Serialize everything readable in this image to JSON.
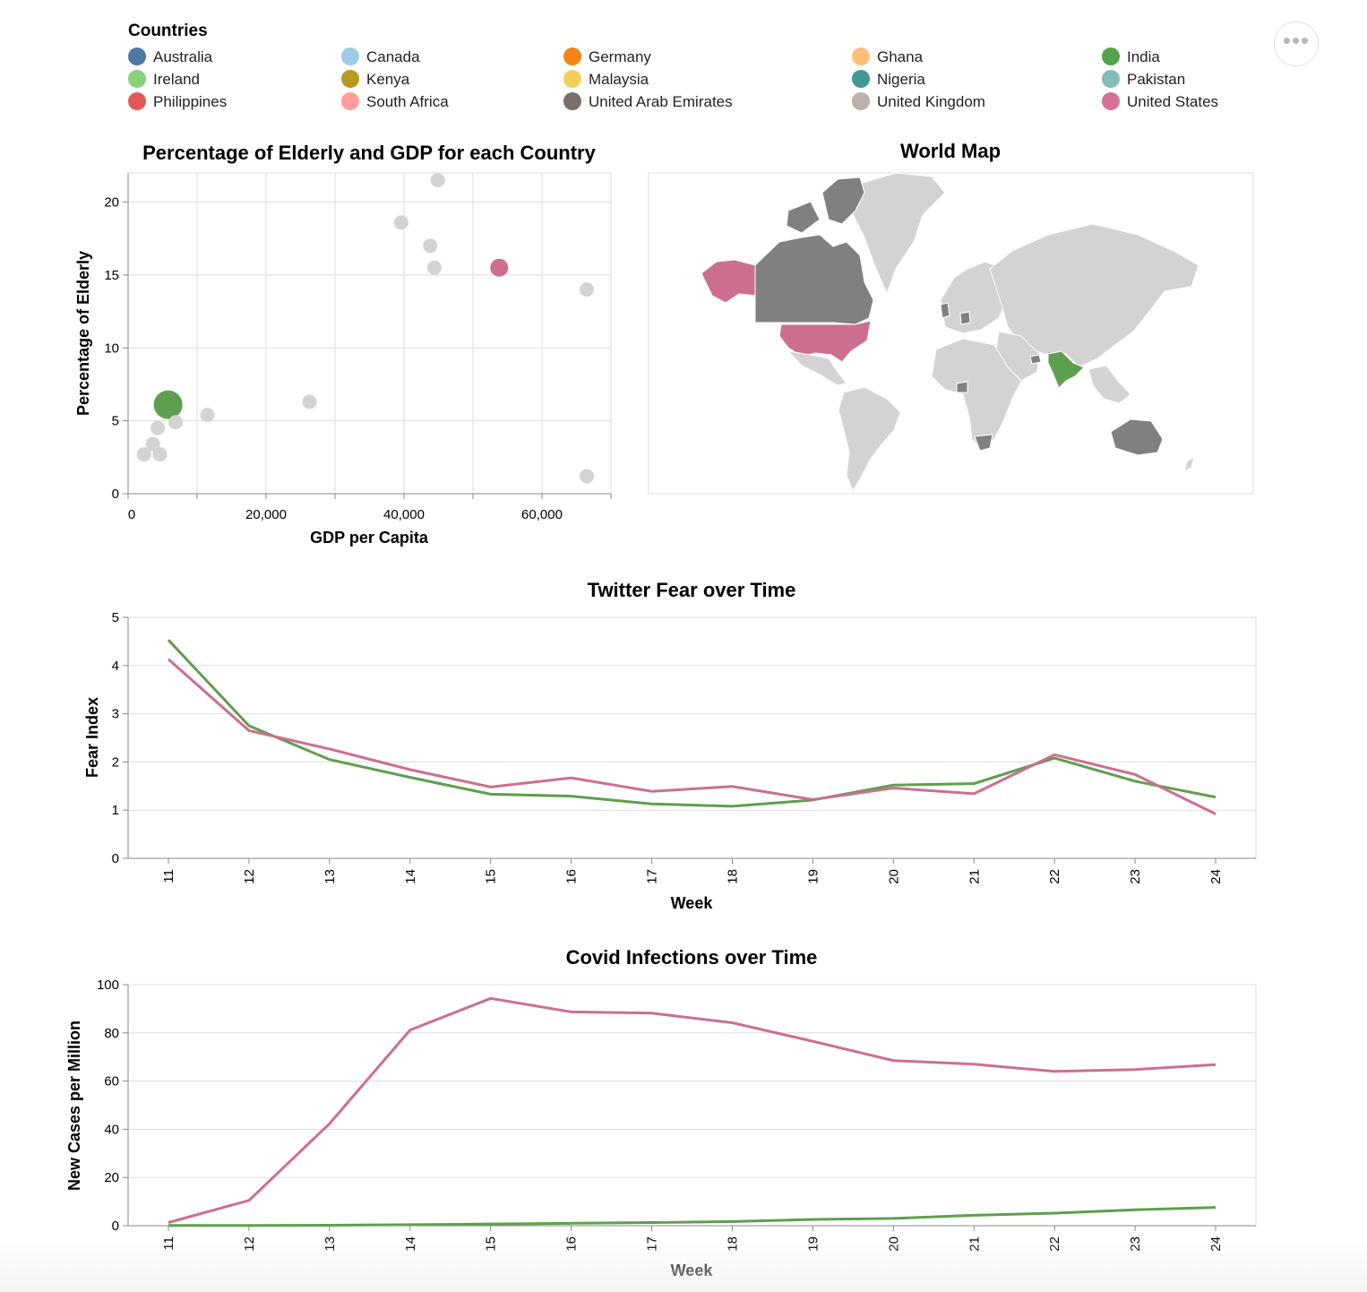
{
  "legend": {
    "title": "Countries",
    "items": [
      {
        "label": "Australia",
        "color": "#4c78a8"
      },
      {
        "label": "Canada",
        "color": "#9ecae9"
      },
      {
        "label": "Germany",
        "color": "#f58518"
      },
      {
        "label": "Ghana",
        "color": "#ffbf79"
      },
      {
        "label": "India",
        "color": "#54a24b"
      },
      {
        "label": "Ireland",
        "color": "#88d27a"
      },
      {
        "label": "Kenya",
        "color": "#b79a20"
      },
      {
        "label": "Malaysia",
        "color": "#f2cf5b"
      },
      {
        "label": "Nigeria",
        "color": "#439894"
      },
      {
        "label": "Pakistan",
        "color": "#83bcb6"
      },
      {
        "label": "Philippines",
        "color": "#e45756"
      },
      {
        "label": "South Africa",
        "color": "#ff9d98"
      },
      {
        "label": "United Arab Emirates",
        "color": "#79706e"
      },
      {
        "label": "United Kingdom",
        "color": "#bab0ac"
      },
      {
        "label": "United States",
        "color": "#d67195"
      }
    ]
  },
  "menu": {
    "icon": "more-horizontal-icon",
    "glyph": "•••"
  },
  "colors": {
    "india": "#5f9e4f",
    "united_states": "#cc6f8f",
    "unselected": "#d3d3d3",
    "map_dark": "#808080"
  },
  "chart_data": [
    {
      "type": "scatter",
      "title": "Percentage of Elderly and GDP for each Country",
      "xlabel": "GDP per Capita",
      "ylabel": "Percentage of Elderly",
      "xlim": [
        0,
        70000
      ],
      "ylim": [
        0,
        22
      ],
      "x_ticks": [
        "0",
        "20,000",
        "40,000",
        "60,000"
      ],
      "y_ticks": [
        "0",
        "5",
        "10",
        "15",
        "20"
      ],
      "grid": true,
      "points": [
        {
          "x": 2300,
          "y": 2.7,
          "highlight": false
        },
        {
          "x": 3600,
          "y": 3.4,
          "highlight": false
        },
        {
          "x": 4300,
          "y": 4.5,
          "highlight": false
        },
        {
          "x": 4600,
          "y": 2.7,
          "highlight": false
        },
        {
          "x": 5800,
          "y": 6.1,
          "highlight": true,
          "series": "India",
          "size": "large"
        },
        {
          "x": 6900,
          "y": 4.9,
          "highlight": false
        },
        {
          "x": 11500,
          "y": 5.4,
          "highlight": false
        },
        {
          "x": 26300,
          "y": 6.3,
          "highlight": false
        },
        {
          "x": 39600,
          "y": 18.6,
          "highlight": false
        },
        {
          "x": 43800,
          "y": 17.0,
          "highlight": false
        },
        {
          "x": 44400,
          "y": 15.5,
          "highlight": false
        },
        {
          "x": 44900,
          "y": 21.5,
          "highlight": false
        },
        {
          "x": 53800,
          "y": 15.5,
          "highlight": true,
          "series": "United States",
          "size": "medium"
        },
        {
          "x": 66500,
          "y": 14.0,
          "highlight": false
        },
        {
          "x": 66500,
          "y": 1.2,
          "highlight": false
        }
      ]
    },
    {
      "type": "map",
      "title": "World Map",
      "highlighted": [
        "India",
        "United States"
      ]
    },
    {
      "type": "line",
      "title": "Twitter Fear over Time",
      "xlabel": "Week",
      "ylabel": "Fear Index",
      "x": [
        11,
        12,
        13,
        14,
        15,
        16,
        17,
        18,
        19,
        20,
        21,
        22,
        23,
        24
      ],
      "ylim": [
        0,
        5
      ],
      "y_ticks": [
        "0",
        "1",
        "2",
        "3",
        "4",
        "5"
      ],
      "series": [
        {
          "color_key": "india",
          "values": [
            4.53,
            2.75,
            2.05,
            1.68,
            1.33,
            1.29,
            1.13,
            1.08,
            1.21,
            1.52,
            1.55,
            2.08,
            1.6,
            1.27
          ]
        },
        {
          "color_key": "united_states",
          "values": [
            4.13,
            2.65,
            2.27,
            1.84,
            1.48,
            1.67,
            1.39,
            1.49,
            1.22,
            1.46,
            1.34,
            2.15,
            1.74,
            0.92
          ]
        }
      ]
    },
    {
      "type": "line",
      "title": "Covid Infections over Time",
      "xlabel": "Week",
      "ylabel": "New Cases per Million",
      "x": [
        11,
        12,
        13,
        14,
        15,
        16,
        17,
        18,
        19,
        20,
        21,
        22,
        23,
        24
      ],
      "ylim": [
        0,
        100
      ],
      "y_ticks": [
        "0",
        "20",
        "40",
        "60",
        "80",
        "100"
      ],
      "series": [
        {
          "color_key": "india",
          "values": [
            0.1,
            0.1,
            0.2,
            0.4,
            0.7,
            1.0,
            1.3,
            1.7,
            2.6,
            3.0,
            4.3,
            5.2,
            6.6,
            7.6
          ]
        },
        {
          "color_key": "united_states",
          "values": [
            1.3,
            10.5,
            42.3,
            81.2,
            94.3,
            88.7,
            88.2,
            84.2,
            76.5,
            68.5,
            67.0,
            64.0,
            64.8,
            66.8
          ]
        }
      ]
    }
  ]
}
